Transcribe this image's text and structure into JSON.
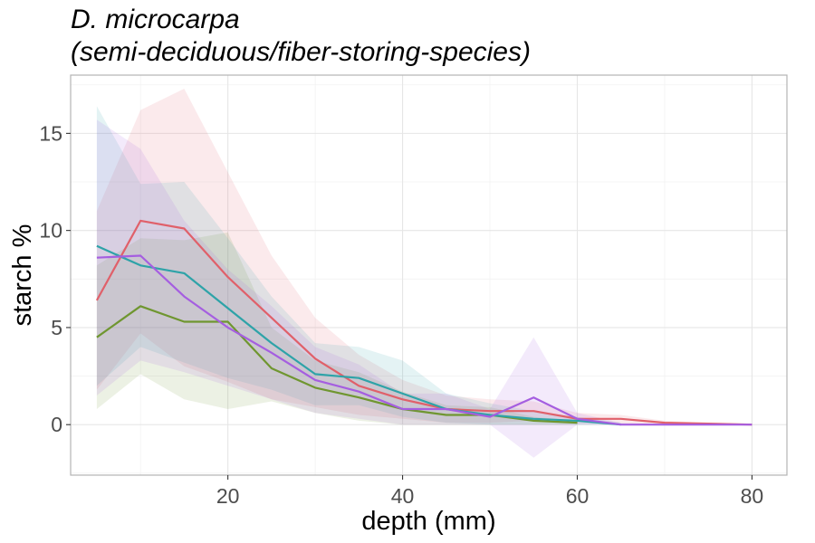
{
  "chart_data": {
    "type": "line",
    "title": "D. microcarpa",
    "subtitle": "(semi-deciduous/fiber-storing-species)",
    "xlabel": "depth (mm)",
    "ylabel": "starch %",
    "xlim": [
      2,
      84
    ],
    "ylim": [
      -2.6,
      18
    ],
    "xticks": [
      20,
      40,
      60,
      80
    ],
    "yticks": [
      0,
      5,
      10,
      15
    ],
    "grid": true,
    "legend": "none",
    "series": [
      {
        "color": "#e0606a",
        "x": [
          5,
          10,
          15,
          20,
          25,
          30,
          35,
          40,
          45,
          50,
          55,
          60,
          65,
          70,
          75,
          80
        ],
        "y": [
          6.4,
          10.5,
          10.1,
          7.6,
          5.5,
          3.4,
          2.0,
          1.3,
          0.8,
          0.7,
          0.7,
          0.3,
          0.3,
          0.1,
          0.05,
          0.0
        ],
        "lower": [
          1.8,
          4.7,
          3.0,
          2.2,
          1.3,
          0.9,
          0.5,
          0.3,
          0.1,
          0.1,
          0.2,
          0.05,
          0.05,
          0.0,
          0.0,
          0.0
        ],
        "upper": [
          11.0,
          16.2,
          17.3,
          13.0,
          8.7,
          5.5,
          3.6,
          2.3,
          1.5,
          1.3,
          1.2,
          0.6,
          0.5,
          0.2,
          0.1,
          0.05
        ]
      },
      {
        "color": "#6f9630",
        "x": [
          5,
          10,
          15,
          20,
          25,
          30,
          35,
          40,
          45,
          50,
          55,
          60
        ],
        "y": [
          4.5,
          6.1,
          5.3,
          5.3,
          2.9,
          1.9,
          1.4,
          0.8,
          0.5,
          0.5,
          0.2,
          0.1
        ],
        "lower": [
          0.8,
          2.6,
          1.3,
          0.8,
          1.2,
          0.6,
          0.2,
          0.0,
          0.0,
          0.0,
          0.0,
          0.0
        ],
        "upper": [
          8.2,
          9.6,
          9.5,
          9.9,
          5.0,
          3.3,
          2.7,
          1.7,
          1.0,
          0.9,
          0.4,
          0.2
        ]
      },
      {
        "color": "#2ea3a8",
        "x": [
          5,
          10,
          15,
          20,
          25,
          30,
          35,
          40,
          45,
          50,
          55,
          60,
          65
        ],
        "y": [
          9.2,
          8.2,
          7.8,
          6.0,
          4.2,
          2.6,
          2.4,
          1.6,
          0.8,
          0.5,
          0.3,
          0.2,
          0.0
        ],
        "lower": [
          2.0,
          4.0,
          3.2,
          2.4,
          1.8,
          1.0,
          1.0,
          0.4,
          0.1,
          0.0,
          0.0,
          0.0,
          0.0
        ],
        "upper": [
          16.4,
          12.4,
          12.5,
          9.6,
          6.6,
          4.2,
          4.0,
          3.3,
          1.6,
          1.1,
          0.7,
          0.4,
          0.1
        ]
      },
      {
        "color": "#a55ee0",
        "x": [
          5,
          10,
          15,
          20,
          25,
          30,
          35,
          40,
          45,
          50,
          55,
          60,
          65,
          70,
          75,
          80
        ],
        "y": [
          8.6,
          8.7,
          6.6,
          5.0,
          3.7,
          2.3,
          1.7,
          0.8,
          0.8,
          0.4,
          1.4,
          0.3,
          0.0,
          0.0,
          0.0,
          0.0
        ],
        "lower": [
          1.5,
          3.3,
          2.7,
          2.0,
          1.3,
          0.6,
          0.3,
          0.0,
          0.0,
          0.0,
          -1.7,
          0.0,
          0.0,
          0.0,
          0.0,
          0.0
        ],
        "upper": [
          15.7,
          14.2,
          10.5,
          8.0,
          6.1,
          4.0,
          3.1,
          1.6,
          1.6,
          0.8,
          4.5,
          0.6,
          0.1,
          0.05,
          0.05,
          0.05
        ]
      }
    ]
  }
}
